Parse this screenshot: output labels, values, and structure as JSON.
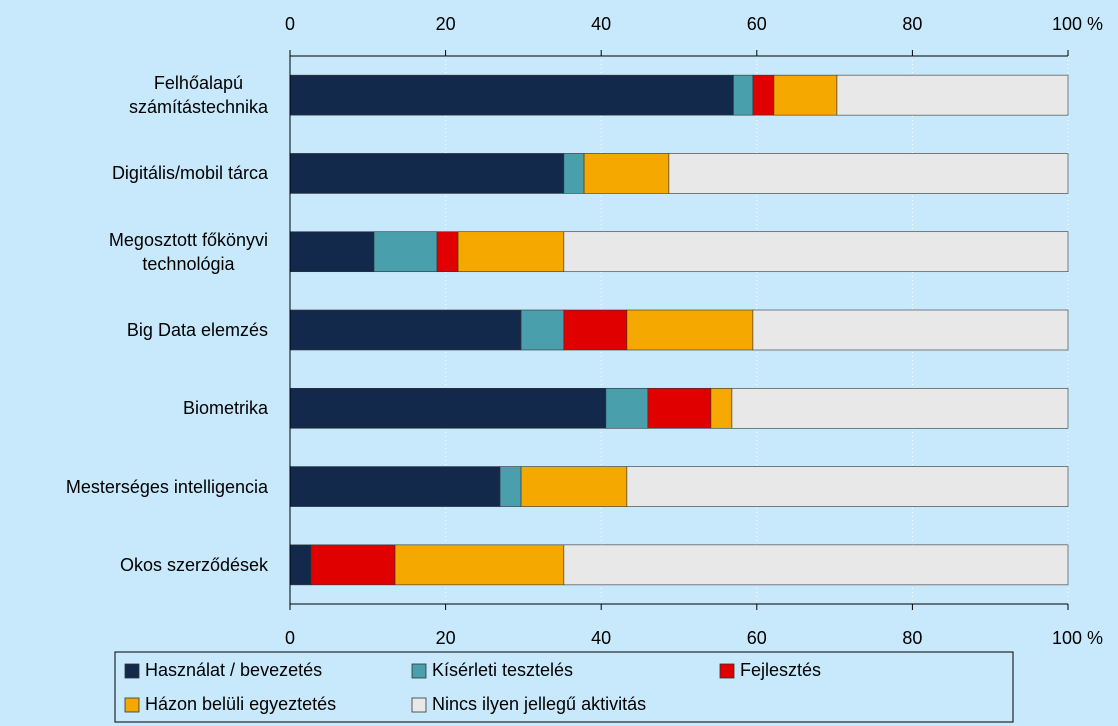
{
  "chart_data": {
    "type": "stacked-bar-horizontal",
    "categories": [
      "Felhőalapú\nszámítástechnika",
      "Digitális/mobil tárca",
      "Megosztott főkönyvi\ntechnológia",
      "Big Data elemzés",
      "Biometrika",
      "Mesterséges intelligencia",
      "Okos szerződések"
    ],
    "series": [
      {
        "name": "Használat / bevezetés",
        "color": "#13294b",
        "values": [
          57,
          35.2,
          10.8,
          29.7,
          40.6,
          27,
          2.7
        ]
      },
      {
        "name": "Kísérleti tesztelés",
        "color": "#4a9fad",
        "values": [
          2.5,
          2.6,
          8.1,
          5.5,
          5.4,
          2.7,
          0
        ]
      },
      {
        "name": "Fejlesztés",
        "color": "#e00000",
        "values": [
          2.7,
          0,
          2.7,
          8.1,
          8.1,
          0,
          10.8
        ]
      },
      {
        "name": "Házon belüli egyeztetés",
        "color": "#f5a800",
        "values": [
          8.1,
          10.9,
          13.6,
          16.2,
          2.7,
          13.6,
          21.7
        ]
      },
      {
        "name": "Nincs ilyen jellegű aktivitás",
        "color": "#e8e8e8",
        "values": [
          29.7,
          51.3,
          64.8,
          40.5,
          43.2,
          56.7,
          64.8
        ]
      }
    ],
    "xlim": [
      0,
      100
    ],
    "xticks": [
      0,
      20,
      40,
      60,
      80,
      {
        "value": 100,
        "label": "100 %"
      }
    ],
    "grid": true,
    "legend": "bottom"
  }
}
